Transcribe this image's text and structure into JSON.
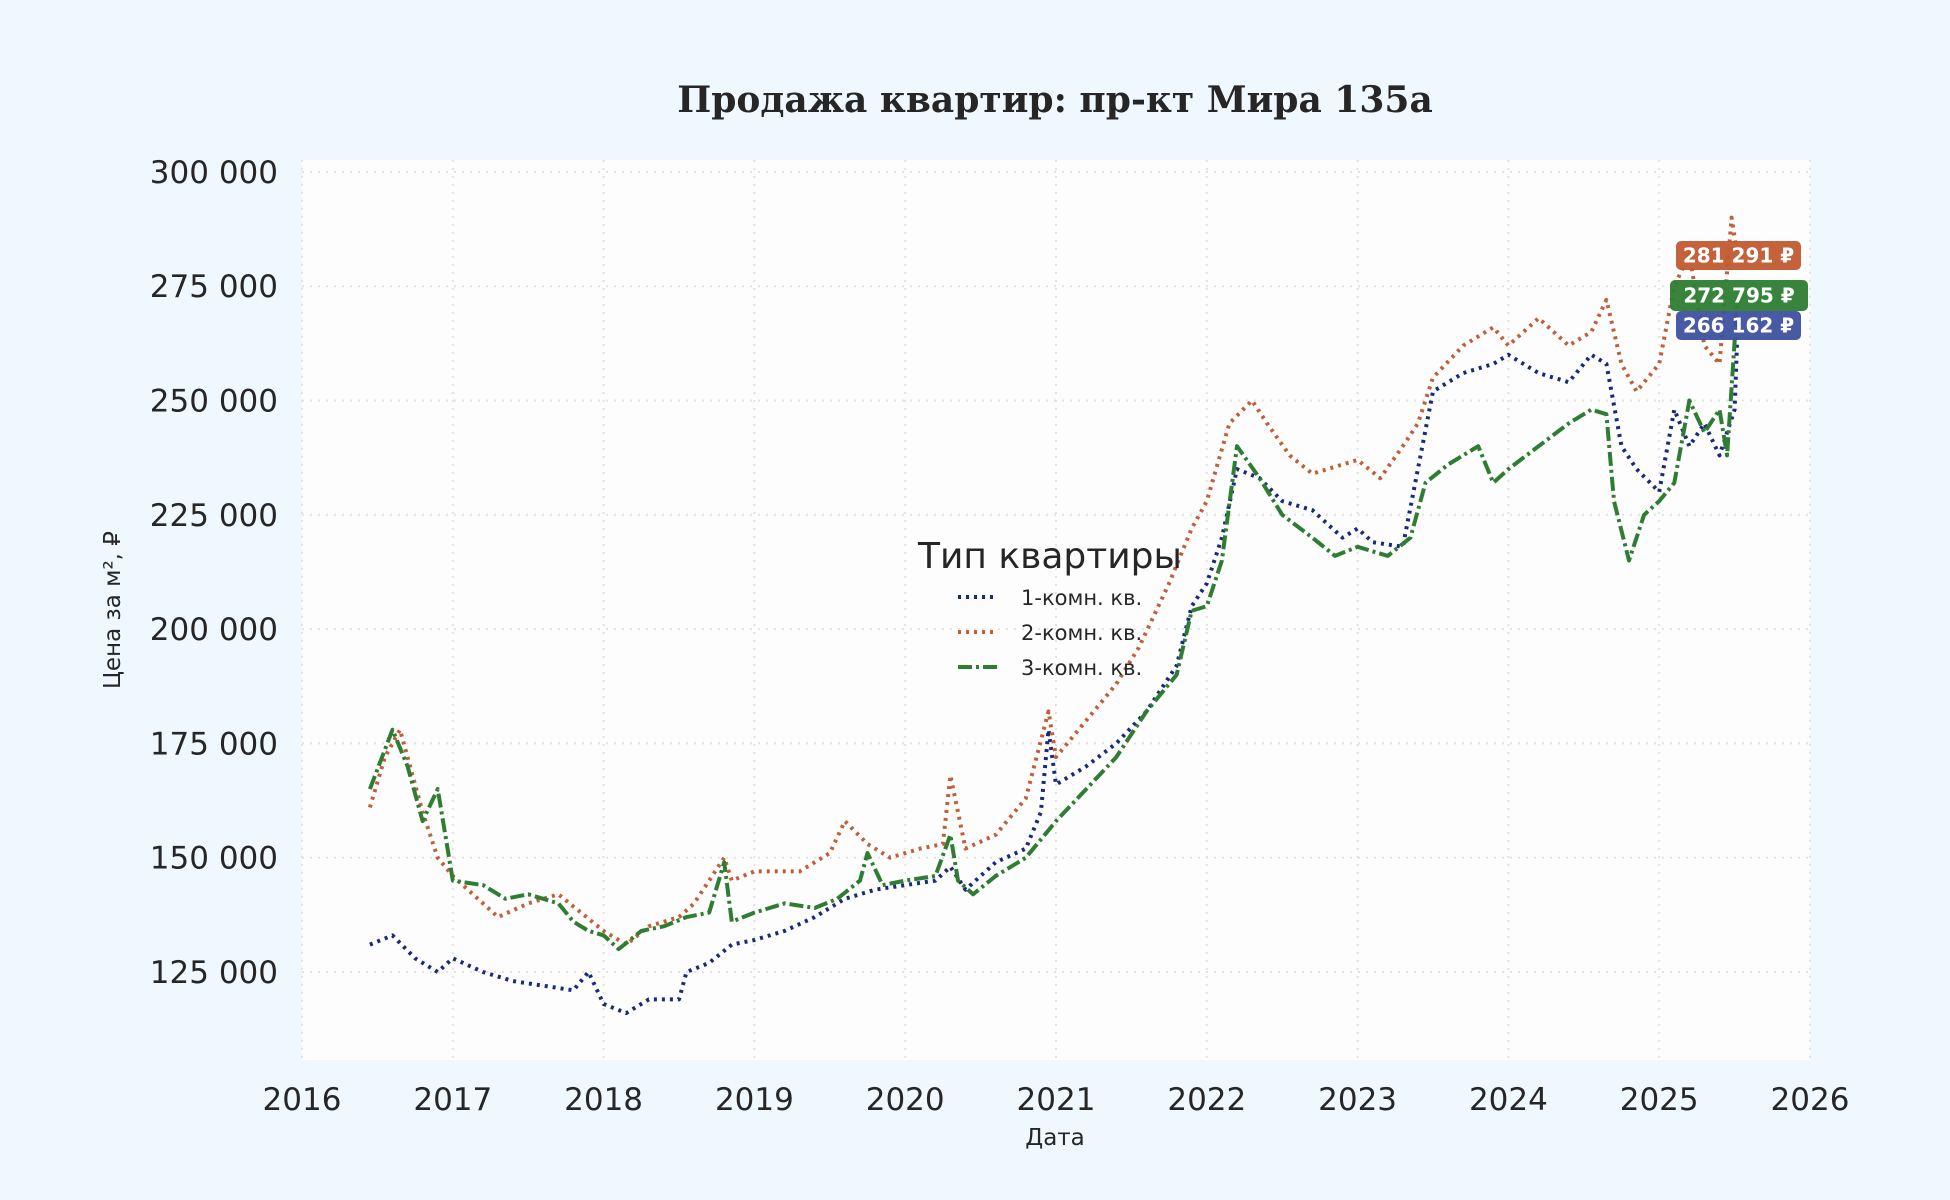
{
  "chart_data": {
    "type": "line",
    "title": "Продажа квартир: пр-кт Мира 135а",
    "xlabel": "Дата",
    "ylabel": "Цена за м², ₽",
    "xlim": [
      2016,
      2026
    ],
    "ylim": [
      105000,
      302000
    ],
    "x_ticks": [
      "2016",
      "2017",
      "2018",
      "2019",
      "2020",
      "2021",
      "2022",
      "2023",
      "2024",
      "2025",
      "2026"
    ],
    "y_ticks": [
      {
        "value": 125000,
        "label": "125 000"
      },
      {
        "value": 150000,
        "label": "150 000"
      },
      {
        "value": 175000,
        "label": "175 000"
      },
      {
        "value": 200000,
        "label": "200 000"
      },
      {
        "value": 225000,
        "label": "225 000"
      },
      {
        "value": 250000,
        "label": "250 000"
      },
      {
        "value": 275000,
        "label": "275 000"
      },
      {
        "value": 300000,
        "label": "300 000"
      }
    ],
    "grid": true,
    "legend": {
      "title": "Тип квартиры",
      "placement": "center"
    },
    "series": [
      {
        "name": "1-комн. кв.",
        "color": "#1a2a7a",
        "style": "dotted",
        "last_label": "266 162 ₽",
        "last_color": "#3f51a0",
        "x": [
          2016.45,
          2016.6,
          2016.75,
          2016.9,
          2017.0,
          2017.2,
          2017.4,
          2017.6,
          2017.8,
          2017.9,
          2018.0,
          2018.15,
          2018.3,
          2018.5,
          2018.55,
          2018.7,
          2018.85,
          2019.0,
          2019.2,
          2019.4,
          2019.6,
          2019.8,
          2020.0,
          2020.2,
          2020.3,
          2020.4,
          2020.6,
          2020.8,
          2020.9,
          2020.95,
          2021.0,
          2021.2,
          2021.4,
          2021.6,
          2021.8,
          2021.9,
          2022.0,
          2022.1,
          2022.2,
          2022.35,
          2022.5,
          2022.7,
          2022.9,
          2023.0,
          2023.1,
          2023.3,
          2023.4,
          2023.5,
          2023.7,
          2023.9,
          2024.0,
          2024.2,
          2024.4,
          2024.55,
          2024.65,
          2024.75,
          2024.85,
          2025.0,
          2025.1,
          2025.2,
          2025.3,
          2025.4,
          2025.5,
          2025.52
        ],
        "y": [
          131000,
          133000,
          128000,
          125000,
          128000,
          125000,
          123000,
          122000,
          121000,
          125000,
          118000,
          116000,
          119000,
          119000,
          125000,
          127000,
          131000,
          132000,
          134000,
          137000,
          141000,
          143000,
          144000,
          145000,
          148000,
          143000,
          149000,
          152000,
          160000,
          178000,
          166000,
          170000,
          175000,
          182000,
          192000,
          205000,
          210000,
          220000,
          235000,
          233000,
          228000,
          226000,
          220000,
          222000,
          219000,
          218000,
          235000,
          252000,
          256000,
          258000,
          260000,
          256000,
          254000,
          260000,
          258000,
          240000,
          235000,
          230000,
          248000,
          240000,
          245000,
          238000,
          248000,
          266162
        ]
      },
      {
        "name": "2-комн. кв.",
        "color": "#c0603a",
        "style": "dotted",
        "last_label": "281 291 ₽",
        "last_color": "#c05a30",
        "x": [
          2016.45,
          2016.55,
          2016.65,
          2016.8,
          2016.9,
          2017.0,
          2017.2,
          2017.3,
          2017.5,
          2017.7,
          2017.85,
          2018.0,
          2018.15,
          2018.3,
          2018.5,
          2018.6,
          2018.8,
          2018.85,
          2019.0,
          2019.3,
          2019.5,
          2019.6,
          2019.75,
          2019.9,
          2020.1,
          2020.25,
          2020.3,
          2020.4,
          2020.6,
          2020.8,
          2020.95,
          2021.0,
          2021.2,
          2021.4,
          2021.55,
          2021.75,
          2021.9,
          2022.0,
          2022.15,
          2022.3,
          2022.4,
          2022.55,
          2022.7,
          2022.9,
          2023.0,
          2023.15,
          2023.3,
          2023.4,
          2023.5,
          2023.7,
          2023.9,
          2024.0,
          2024.2,
          2024.4,
          2024.55,
          2024.65,
          2024.75,
          2024.85,
          2025.0,
          2025.1,
          2025.2,
          2025.3,
          2025.4,
          2025.48,
          2025.52
        ],
        "y": [
          161000,
          172000,
          178000,
          160000,
          150000,
          146000,
          140000,
          137000,
          140000,
          142000,
          138000,
          134000,
          131000,
          135000,
          137000,
          140000,
          150000,
          145000,
          147000,
          147000,
          151000,
          158000,
          153000,
          150000,
          152000,
          153000,
          168000,
          152000,
          155000,
          163000,
          182000,
          172000,
          180000,
          188000,
          196000,
          210000,
          222000,
          228000,
          245000,
          250000,
          245000,
          238000,
          234000,
          236000,
          237000,
          233000,
          240000,
          245000,
          255000,
          262000,
          266000,
          262000,
          268000,
          262000,
          265000,
          272000,
          258000,
          252000,
          258000,
          275000,
          282000,
          262000,
          258000,
          290000,
          281291
        ]
      },
      {
        "name": "3-комн. кв.",
        "color": "#2e7d32",
        "style": "dashdot",
        "last_label": "272 795 ₽",
        "last_color": "#2e7d32",
        "x": [
          2016.45,
          2016.6,
          2016.7,
          2016.8,
          2016.9,
          2016.95,
          2017.0,
          2017.2,
          2017.35,
          2017.5,
          2017.7,
          2017.8,
          2017.9,
          2018.0,
          2018.1,
          2018.25,
          2018.4,
          2018.55,
          2018.7,
          2018.8,
          2018.85,
          2019.0,
          2019.2,
          2019.4,
          2019.55,
          2019.7,
          2019.75,
          2019.85,
          2020.0,
          2020.2,
          2020.3,
          2020.35,
          2020.45,
          2020.6,
          2020.8,
          2020.95,
          2021.0,
          2021.2,
          2021.4,
          2021.6,
          2021.8,
          2021.9,
          2022.0,
          2022.1,
          2022.2,
          2022.35,
          2022.5,
          2022.7,
          2022.85,
          2023.0,
          2023.2,
          2023.35,
          2023.45,
          2023.6,
          2023.8,
          2023.9,
          2024.0,
          2024.2,
          2024.4,
          2024.55,
          2024.65,
          2024.7,
          2024.8,
          2024.9,
          2025.0,
          2025.1,
          2025.2,
          2025.3,
          2025.4,
          2025.45,
          2025.52
        ],
        "y": [
          165000,
          178000,
          170000,
          158000,
          165000,
          155000,
          145000,
          144000,
          141000,
          142000,
          140000,
          136000,
          134000,
          133000,
          130000,
          134000,
          135000,
          137000,
          138000,
          149000,
          136000,
          138000,
          140000,
          139000,
          141000,
          145000,
          151000,
          144000,
          145000,
          146000,
          155000,
          145000,
          142000,
          146000,
          150000,
          156000,
          158000,
          165000,
          172000,
          182000,
          190000,
          204000,
          205000,
          215000,
          240000,
          233000,
          225000,
          220000,
          216000,
          218000,
          216000,
          220000,
          232000,
          236000,
          240000,
          232000,
          235000,
          240000,
          245000,
          248000,
          247000,
          228000,
          215000,
          225000,
          228000,
          232000,
          250000,
          243000,
          248000,
          238000,
          272795
        ]
      }
    ]
  }
}
